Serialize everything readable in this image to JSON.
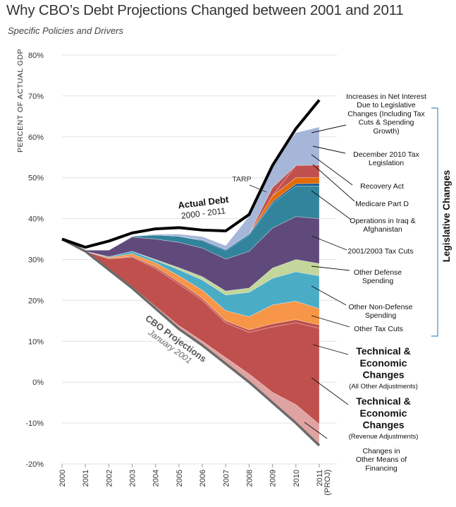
{
  "title": "Why CBO’s Debt Projections Changed between 2001 and 2011",
  "subtitle": "Specific Policies and Drivers",
  "chart_data": {
    "type": "area",
    "ylabel": "PERCENT OF ACTUAL GDP",
    "ylim": [
      -20,
      80
    ],
    "y_ticks": [
      "80%",
      "70%",
      "60%",
      "50%",
      "40%",
      "30%",
      "20%",
      "10%",
      "0%",
      "-10%",
      "-20%"
    ],
    "x": [
      "2000",
      "2001",
      "2002",
      "2003",
      "2004",
      "2005",
      "2006",
      "2007",
      "2008",
      "2009",
      "2010",
      "2011 (PROJ)"
    ],
    "x_tick_main": [
      "2000",
      "2001",
      "2002",
      "2003",
      "2004",
      "2005",
      "2006",
      "2007",
      "2008",
      "2009",
      "2010",
      "2011"
    ],
    "x_tick_sub": [
      "",
      "",
      "",
      "",
      "",
      "",
      "",
      "",
      "",
      "",
      "",
      "(PROJ)"
    ],
    "grid": true,
    "base": {
      "name": "CBO Projections",
      "sublabel": "January 2001",
      "values": [
        35,
        32,
        27.5,
        23,
        18,
        13,
        9,
        4.5,
        0,
        -5,
        -10,
        -15.5
      ]
    },
    "actual": {
      "name": "Actual Debt",
      "sublabel": "2000 - 2011",
      "values": [
        35,
        33,
        34.5,
        36.5,
        37.5,
        37.8,
        37.2,
        37,
        41,
        53,
        62,
        69
      ]
    },
    "series": [
      {
        "name": "Changes in Other Means of Financing",
        "color": "#dfa3a1",
        "values": [
          0,
          0,
          0.2,
          0.3,
          0.5,
          0.8,
          1.0,
          1.5,
          2.0,
          2.5,
          4.5,
          5.2
        ]
      },
      {
        "name": "Technical & Economic Changes (Revenue Adjustments)",
        "color": "#c0504d",
        "values": [
          0,
          0,
          2.5,
          7.3,
          9.3,
          10.2,
          10.0,
          8.5,
          10.2,
          16.0,
          20.0,
          23.5
        ]
      },
      {
        "name": "Technical & Economic Changes (All Other Adjustments)",
        "color": "#c0504d",
        "values": [
          0,
          0,
          0,
          0.2,
          0.4,
          0.5,
          0.5,
          0.5,
          0.6,
          0.8,
          0.8,
          0.8
        ]
      },
      {
        "name": "Other Tax Cuts",
        "color": "#f79646",
        "values": [
          0,
          0,
          0.3,
          0.6,
          1.0,
          1.5,
          2.0,
          2.5,
          3.2,
          4.6,
          4.5,
          4.0
        ]
      },
      {
        "name": "Other Non-Defense Spending",
        "color": "#4bacc6",
        "values": [
          0,
          0,
          0.2,
          0.6,
          0.6,
          1.5,
          2.5,
          3.8,
          6.0,
          6.5,
          7.2,
          8.0
        ]
      },
      {
        "name": "Other Defense Spending",
        "color": "#c3d69b",
        "values": [
          0,
          0,
          0,
          0,
          0.2,
          0.5,
          0.8,
          1.0,
          1.0,
          2.5,
          3.0,
          3.0
        ]
      },
      {
        "name": "2001/2003 Tax Cuts",
        "color": "#604a7b",
        "values": [
          0,
          0.3,
          1.6,
          3.5,
          5.0,
          6.2,
          7.0,
          7.8,
          9.0,
          9.8,
          10.5,
          11.0
        ]
      },
      {
        "name": "Operations in Iraq & Afghanistan",
        "color": "#31849b",
        "values": [
          0,
          0,
          0,
          0.2,
          1.0,
          1.5,
          1.8,
          2.0,
          4.0,
          6.0,
          7.5,
          8.0
        ]
      },
      {
        "name": "Medicare Part D",
        "color": "#0b5394",
        "values": [
          0,
          0,
          0,
          0,
          0,
          0,
          0.2,
          0.3,
          0.3,
          0.4,
          0.5,
          0.6
        ]
      },
      {
        "name": "Recovery Act",
        "color": "#e36c0a",
        "values": [
          0,
          0,
          0,
          0,
          0,
          0,
          0,
          0,
          0,
          1.5,
          1.5,
          1.5
        ]
      },
      {
        "name": "December 2010 Tax Legislation",
        "color": "#c0504d",
        "values": [
          0,
          0,
          0,
          0,
          0,
          0,
          0,
          0,
          0,
          0,
          3.0,
          3.0
        ]
      },
      {
        "name": "TARP",
        "color": "#c0504d",
        "values": [
          0,
          0,
          0,
          0,
          0,
          0,
          0,
          0,
          0,
          2.0,
          0,
          0
        ]
      },
      {
        "name": "Increases in Net Interest Due to Legislative Changes (Including Tax Cuts & Spending Growth)",
        "color": "#a6b6d8",
        "values": [
          0,
          0,
          0,
          0,
          0.2,
          0.5,
          0.8,
          1.0,
          4.3,
          6.0,
          8.0,
          9.3
        ]
      }
    ],
    "series_divider_color": "#ffffff",
    "legislative_label": "Legislative Changes"
  },
  "annotations": {
    "tarp": "TARP",
    "actual_debt_title": "Actual Debt",
    "actual_debt_sub": "2000 - 2011",
    "cbo_title": "CBO Projections",
    "cbo_sub": "January 2001"
  },
  "right_labels": [
    {
      "key": "net_interest",
      "lines": [
        "Increases in Net Interest",
        "Due to Legislative",
        "Changes (Including Tax",
        "Cuts & Spending",
        "Growth)"
      ],
      "bold": false
    },
    {
      "key": "dec2010",
      "lines": [
        "December 2010 Tax",
        "Legislation"
      ],
      "bold": false
    },
    {
      "key": "recovery",
      "lines": [
        "Recovery Act"
      ],
      "bold": false
    },
    {
      "key": "medicare",
      "lines": [
        "Medicare Part D"
      ],
      "bold": false
    },
    {
      "key": "iraq",
      "lines": [
        "Operations in Iraq &",
        "Afghanistan"
      ],
      "bold": false
    },
    {
      "key": "taxcuts0103",
      "lines": [
        "2001/2003 Tax Cuts"
      ],
      "bold": false
    },
    {
      "key": "defense",
      "lines": [
        "Other Defense",
        "Spending"
      ],
      "bold": false
    },
    {
      "key": "nondefense",
      "lines": [
        "Other Non-Defense",
        "Spending"
      ],
      "bold": false
    },
    {
      "key": "othertax",
      "lines": [
        "Other Tax Cuts"
      ],
      "bold": false
    },
    {
      "key": "tech_all",
      "lines": [
        "Technical &",
        "Economic",
        "Changes"
      ],
      "bold": true,
      "sub": "(All Other Adjustments)"
    },
    {
      "key": "tech_rev",
      "lines": [
        "Technical &",
        "Economic",
        "Changes"
      ],
      "bold": true,
      "sub": "(Revenue Adjustments)"
    },
    {
      "key": "financing",
      "lines": [
        "Changes in",
        "Other Means of",
        "Financing"
      ],
      "bold": false
    }
  ]
}
